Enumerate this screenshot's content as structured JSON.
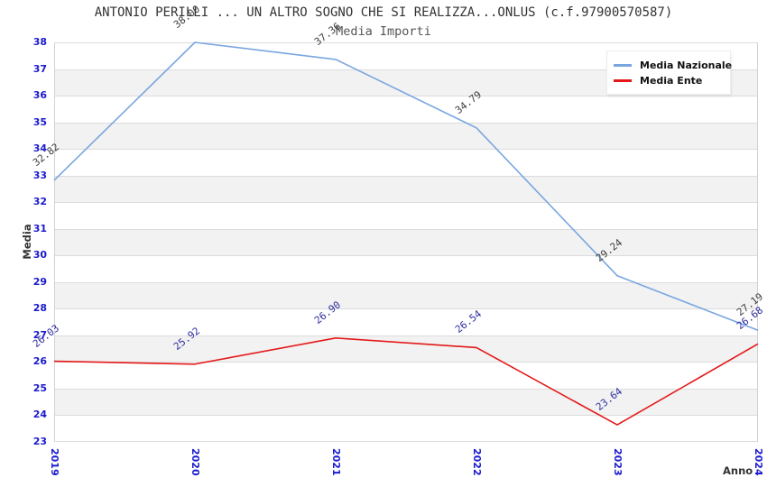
{
  "title": "ANTONIO PERILLI ... UN ALTRO SOGNO CHE SI REALIZZA...ONLUS (c.f.97900570587)",
  "subtitle": "Media Importi",
  "axes": {
    "y_label": "Media",
    "x_label": "Anno",
    "y_ticks": [
      38,
      37,
      36,
      35,
      34,
      33,
      32,
      31,
      30,
      29,
      28,
      27,
      26,
      25,
      24,
      23
    ],
    "x_ticks": [
      "2019",
      "2020",
      "2021",
      "2022",
      "2023",
      "2024"
    ]
  },
  "legend": {
    "items": [
      {
        "label": "Media Nazionale",
        "color": "#7aa6e0"
      },
      {
        "label": "Media Ente",
        "color": "#e41818"
      }
    ]
  },
  "colors": {
    "tick_label": "#1a1acd",
    "band_gray": "#f2f2f2",
    "gridline": "#dcdcdc",
    "national_series": "#7aa6e0",
    "entity_series": "#e41818",
    "national_value_label": "#3d3d3d",
    "entity_value_label": "#2f2f9e"
  },
  "chart_data": {
    "type": "line",
    "title": "Media Importi",
    "xlabel": "Anno",
    "ylabel": "Media",
    "ylim": [
      23,
      38
    ],
    "grid": "horizontal-bands-1unit",
    "legend_position": "top-right-inside",
    "categories": [
      "2019",
      "2020",
      "2021",
      "2022",
      "2023",
      "2024"
    ],
    "series": [
      {
        "name": "Media Nazionale",
        "color": "#7aa6e0",
        "label_color": "#3d3d3d",
        "values": [
          32.82,
          38.0,
          37.36,
          34.79,
          29.24,
          27.19
        ]
      },
      {
        "name": "Media Ente",
        "color": "#e41818",
        "label_color": "#2f2f9e",
        "values": [
          26.03,
          25.92,
          26.9,
          26.54,
          23.64,
          26.68
        ]
      }
    ]
  }
}
